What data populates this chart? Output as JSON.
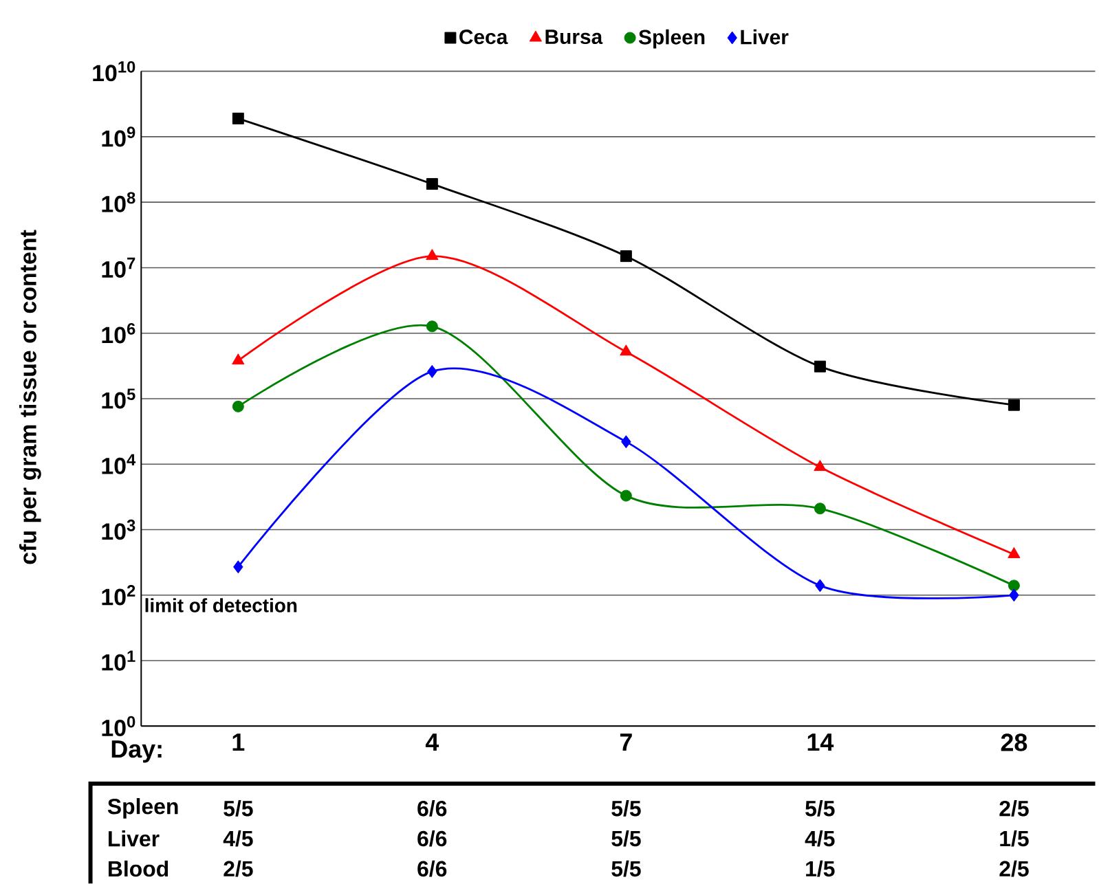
{
  "chart_data": {
    "type": "line",
    "xlabel": "Day:",
    "ylabel": "cfu per gram tissue or content",
    "categories": [
      "1",
      "4",
      "7",
      "14",
      "28"
    ],
    "log": "y",
    "ylim": [
      1,
      10000000000
    ],
    "yticks": [
      {
        "value": 1,
        "label": "10$^{0}$"
      },
      {
        "value": 10,
        "label": "10$^{1}$"
      },
      {
        "value": 100,
        "label": "10$^{2}$"
      },
      {
        "value": 1000,
        "label": "10$^{3}$"
      },
      {
        "value": 10000,
        "label": "10$^{4}$"
      },
      {
        "value": 100000,
        "label": "10$^{5}$"
      },
      {
        "value": 1000000,
        "label": "10$^{6}$"
      },
      {
        "value": 10000000,
        "label": "10$^{7}$"
      },
      {
        "value": 100000000,
        "label": "10$^{8}$"
      },
      {
        "value": 1000000000,
        "label": "10$^{9}$"
      },
      {
        "value": 10000000000,
        "label": "10$^{10}$"
      }
    ],
    "grid": "y",
    "legend": "top",
    "series": [
      {
        "name": "Ceca",
        "color": "#000000",
        "marker": "square",
        "values": [
          1900000000,
          190000000,
          15000000,
          310000,
          80000
        ]
      },
      {
        "name": "Bursa",
        "color": "#ff0000",
        "marker": "triangle",
        "values": [
          380000,
          15000000,
          520000,
          9000,
          420
        ]
      },
      {
        "name": "Spleen",
        "color": "#008000",
        "marker": "circle",
        "values": [
          76000,
          1270000,
          3300,
          2100,
          140
        ]
      },
      {
        "name": "Liver",
        "color": "#0000ff",
        "marker": "diamond",
        "values": [
          270,
          260000,
          22000,
          140,
          100
        ]
      }
    ],
    "annotations": [
      "limit of detection",
      "Spleen",
      "5/5",
      "6/6",
      "5/5",
      "5/5",
      "2/5",
      "Liver",
      "4/5",
      "6/6",
      "5/5",
      "4/5",
      "1/5",
      "Blood",
      "2/5",
      "6/6",
      "5/5",
      "1/5",
      "2/5"
    ]
  }
}
